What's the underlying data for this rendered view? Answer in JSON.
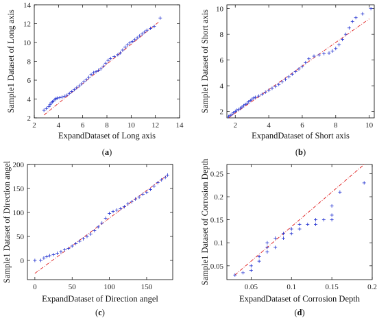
{
  "chart_data": [
    {
      "type": "scatter",
      "panel_label": "(a)",
      "xlabel": "ExpandDataset of Long axis",
      "ylabel": "Sample1 Dataset of Long axis",
      "xlim": [
        2,
        14
      ],
      "ylim": [
        2,
        14
      ],
      "xticks": [
        2,
        4,
        6,
        8,
        10,
        12,
        14
      ],
      "yticks": [
        2,
        4,
        6,
        8,
        10,
        12,
        14
      ],
      "reference_line": [
        [
          2.8,
          2.3
        ],
        [
          12.3,
          12.2
        ]
      ],
      "points": [
        [
          2.8,
          2.8
        ],
        [
          3.0,
          3.0
        ],
        [
          3.2,
          3.2
        ],
        [
          3.3,
          3.4
        ],
        [
          3.4,
          3.6
        ],
        [
          3.5,
          3.7
        ],
        [
          3.6,
          3.8
        ],
        [
          3.7,
          3.95
        ],
        [
          3.8,
          4.05
        ],
        [
          3.9,
          4.1
        ],
        [
          4.1,
          4.15
        ],
        [
          4.3,
          4.2
        ],
        [
          4.5,
          4.3
        ],
        [
          4.7,
          4.4
        ],
        [
          4.9,
          4.6
        ],
        [
          5.1,
          4.8
        ],
        [
          5.3,
          5.0
        ],
        [
          5.5,
          5.2
        ],
        [
          5.7,
          5.4
        ],
        [
          5.9,
          5.6
        ],
        [
          6.1,
          5.85
        ],
        [
          6.3,
          6.05
        ],
        [
          6.5,
          6.3
        ],
        [
          6.7,
          6.6
        ],
        [
          6.9,
          6.8
        ],
        [
          7.1,
          6.9
        ],
        [
          7.3,
          7.05
        ],
        [
          7.5,
          7.2
        ],
        [
          7.7,
          7.5
        ],
        [
          7.9,
          7.8
        ],
        [
          8.1,
          8.1
        ],
        [
          8.3,
          8.3
        ],
        [
          8.6,
          8.5
        ],
        [
          8.9,
          8.7
        ],
        [
          9.1,
          8.9
        ],
        [
          9.3,
          9.2
        ],
        [
          9.5,
          9.5
        ],
        [
          9.7,
          9.75
        ],
        [
          9.9,
          9.95
        ],
        [
          10.1,
          10.1
        ],
        [
          10.3,
          10.3
        ],
        [
          10.5,
          10.5
        ],
        [
          10.7,
          10.7
        ],
        [
          10.9,
          10.9
        ],
        [
          11.1,
          11.1
        ],
        [
          11.3,
          11.3
        ],
        [
          11.6,
          11.5
        ],
        [
          11.9,
          11.7
        ],
        [
          12.4,
          12.6
        ]
      ]
    },
    {
      "type": "scatter",
      "panel_label": "(b)",
      "xlabel": "ExpandDataset of Short axis",
      "ylabel": "Sample1 Dataset of Short axis",
      "xlim": [
        1.5,
        10.3
      ],
      "ylim": [
        1.5,
        10.3
      ],
      "xticks": [
        2,
        4,
        6,
        8,
        10
      ],
      "yticks": [
        2,
        4,
        6,
        8,
        10
      ],
      "reference_line": [
        [
          1.6,
          1.5
        ],
        [
          10.0,
          9.2
        ]
      ],
      "points": [
        [
          1.6,
          1.6
        ],
        [
          1.7,
          1.7
        ],
        [
          1.8,
          1.8
        ],
        [
          1.9,
          1.9
        ],
        [
          2.0,
          2.0
        ],
        [
          2.1,
          2.1
        ],
        [
          2.2,
          2.15
        ],
        [
          2.3,
          2.25
        ],
        [
          2.4,
          2.35
        ],
        [
          2.5,
          2.45
        ],
        [
          2.6,
          2.55
        ],
        [
          2.7,
          2.65
        ],
        [
          2.8,
          2.75
        ],
        [
          2.9,
          2.85
        ],
        [
          3.0,
          2.95
        ],
        [
          3.1,
          3.05
        ],
        [
          3.2,
          3.1
        ],
        [
          3.4,
          3.2
        ],
        [
          3.6,
          3.35
        ],
        [
          3.8,
          3.5
        ],
        [
          4.0,
          3.65
        ],
        [
          4.2,
          3.8
        ],
        [
          4.4,
          3.95
        ],
        [
          4.6,
          4.1
        ],
        [
          4.8,
          4.3
        ],
        [
          5.0,
          4.5
        ],
        [
          5.2,
          4.7
        ],
        [
          5.4,
          4.9
        ],
        [
          5.6,
          5.1
        ],
        [
          5.8,
          5.3
        ],
        [
          6.0,
          5.5
        ],
        [
          6.2,
          5.8
        ],
        [
          6.4,
          6.1
        ],
        [
          6.7,
          6.3
        ],
        [
          7.0,
          6.4
        ],
        [
          7.3,
          6.5
        ],
        [
          7.6,
          6.55
        ],
        [
          7.8,
          6.7
        ],
        [
          8.0,
          6.9
        ],
        [
          8.2,
          7.2
        ],
        [
          8.4,
          7.6
        ],
        [
          8.6,
          8.0
        ],
        [
          8.8,
          8.5
        ],
        [
          9.0,
          9.0
        ],
        [
          9.2,
          9.3
        ],
        [
          9.6,
          9.6
        ],
        [
          10.1,
          10.0
        ]
      ]
    },
    {
      "type": "scatter",
      "panel_label": "(c)",
      "xlabel": "ExpandDataset of Direction angel",
      "ylabel": "Sample1 Dataset of Direction angel",
      "xlim": [
        -10,
        185
      ],
      "ylim": [
        -40,
        200
      ],
      "xticks": [
        0,
        50,
        100,
        150
      ],
      "yticks": [
        0,
        50,
        100,
        150,
        200
      ],
      "reference_line": [
        [
          0,
          -27
        ],
        [
          178,
          178
        ]
      ],
      "points": [
        [
          0,
          0
        ],
        [
          8,
          0
        ],
        [
          12,
          5
        ],
        [
          16,
          8
        ],
        [
          20,
          10
        ],
        [
          25,
          12
        ],
        [
          30,
          15
        ],
        [
          35,
          18
        ],
        [
          40,
          22
        ],
        [
          45,
          25
        ],
        [
          50,
          30
        ],
        [
          55,
          35
        ],
        [
          60,
          40
        ],
        [
          65,
          45
        ],
        [
          70,
          50
        ],
        [
          75,
          55
        ],
        [
          80,
          62
        ],
        [
          85,
          70
        ],
        [
          90,
          78
        ],
        [
          95,
          88
        ],
        [
          100,
          98
        ],
        [
          105,
          102
        ],
        [
          110,
          105
        ],
        [
          115,
          108
        ],
        [
          120,
          112
        ],
        [
          125,
          118
        ],
        [
          130,
          122
        ],
        [
          135,
          128
        ],
        [
          140,
          132
        ],
        [
          145,
          138
        ],
        [
          150,
          142
        ],
        [
          155,
          148
        ],
        [
          160,
          155
        ],
        [
          165,
          162
        ],
        [
          170,
          168
        ],
        [
          175,
          173
        ],
        [
          178,
          178
        ]
      ]
    },
    {
      "type": "scatter",
      "panel_label": "(d)",
      "xlabel": "ExpandDataset of Corrosion Depth",
      "ylabel": "Sample1 Dataset of Corrosion Depth",
      "xlim": [
        0.02,
        0.2
      ],
      "ylim": [
        0.02,
        0.27
      ],
      "xticks": [
        0.05,
        0.1,
        0.15,
        0.2
      ],
      "yticks": [
        0.05,
        0.1,
        0.15,
        0.2,
        0.25
      ],
      "reference_line": [
        [
          0.03,
          0.03
        ],
        [
          0.19,
          0.27
        ]
      ],
      "points": [
        [
          0.03,
          0.03
        ],
        [
          0.04,
          0.035
        ],
        [
          0.05,
          0.04
        ],
        [
          0.05,
          0.05
        ],
        [
          0.06,
          0.06
        ],
        [
          0.06,
          0.07
        ],
        [
          0.07,
          0.08
        ],
        [
          0.07,
          0.09
        ],
        [
          0.07,
          0.1
        ],
        [
          0.08,
          0.09
        ],
        [
          0.08,
          0.11
        ],
        [
          0.09,
          0.11
        ],
        [
          0.09,
          0.12
        ],
        [
          0.1,
          0.12
        ],
        [
          0.1,
          0.13
        ],
        [
          0.11,
          0.13
        ],
        [
          0.11,
          0.14
        ],
        [
          0.12,
          0.14
        ],
        [
          0.13,
          0.14
        ],
        [
          0.13,
          0.15
        ],
        [
          0.14,
          0.15
        ],
        [
          0.15,
          0.15
        ],
        [
          0.15,
          0.16
        ],
        [
          0.15,
          0.18
        ],
        [
          0.16,
          0.21
        ],
        [
          0.19,
          0.23
        ]
      ]
    }
  ]
}
